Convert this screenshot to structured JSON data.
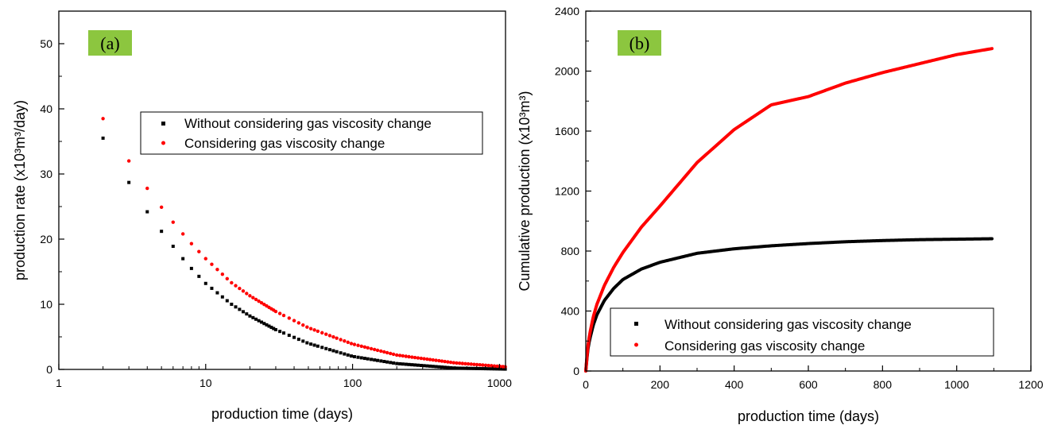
{
  "chart_data": [
    {
      "type": "scatter",
      "panel_label": "(a)",
      "xlabel": "production time (days)",
      "ylabel": "production rate (x10³m³/day)",
      "xscale": "log",
      "xlim": [
        1,
        1100
      ],
      "ylim": [
        0,
        55
      ],
      "xticks": [
        1,
        10,
        100,
        1000
      ],
      "yticks": [
        0,
        10,
        20,
        30,
        40,
        50
      ],
      "grid": false,
      "legend_position": "top-right",
      "series": [
        {
          "name": "Without considering gas viscosity change",
          "color": "#000000",
          "marker": "square",
          "x": [
            2,
            3,
            4,
            5,
            6,
            7,
            8,
            10,
            15,
            20,
            30,
            50,
            100,
            200,
            500,
            1095
          ],
          "y": [
            35.5,
            28.7,
            24.2,
            21.2,
            18.9,
            17.0,
            15.5,
            13.2,
            10.0,
            8.2,
            6.1,
            4.0,
            2.0,
            0.9,
            0.2,
            0.05
          ]
        },
        {
          "name": "Considering gas viscosity change",
          "color": "#ff0000",
          "marker": "circle",
          "x": [
            2,
            3,
            4,
            5,
            6,
            7,
            8,
            10,
            15,
            20,
            30,
            50,
            100,
            200,
            500,
            1095
          ],
          "y": [
            38.5,
            32.0,
            27.8,
            24.9,
            22.6,
            20.8,
            19.3,
            17.0,
            13.3,
            11.3,
            8.9,
            6.4,
            3.9,
            2.2,
            1.0,
            0.4
          ]
        }
      ]
    },
    {
      "type": "line",
      "panel_label": "(b)",
      "xlabel": "production time (days)",
      "ylabel": "Cumulative production (x10³m³)",
      "xlim": [
        0,
        1200
      ],
      "ylim": [
        0,
        2400
      ],
      "xticks": [
        0,
        200,
        400,
        600,
        800,
        1000,
        1200
      ],
      "yticks": [
        0,
        400,
        800,
        1200,
        1600,
        2000,
        2400
      ],
      "grid": false,
      "legend_position": "bottom-right",
      "series": [
        {
          "name": "Without considering gas viscosity change",
          "color": "#000000",
          "x": [
            0,
            5,
            10,
            20,
            30,
            50,
            75,
            100,
            150,
            200,
            300,
            400,
            500,
            600,
            700,
            800,
            900,
            1000,
            1095
          ],
          "y": [
            0,
            135,
            205,
            305,
            375,
            470,
            550,
            610,
            680,
            725,
            785,
            815,
            835,
            850,
            862,
            870,
            876,
            879,
            882
          ]
        },
        {
          "name": "Considering gas viscosity change",
          "color": "#ff0000",
          "x": [
            0,
            5,
            10,
            20,
            30,
            50,
            75,
            100,
            150,
            200,
            300,
            400,
            500,
            600,
            700,
            800,
            900,
            1000,
            1095
          ],
          "y": [
            0,
            150,
            240,
            360,
            445,
            570,
            690,
            790,
            960,
            1100,
            1390,
            1610,
            1775,
            1830,
            1920,
            1990,
            2050,
            2110,
            2150
          ]
        }
      ]
    }
  ]
}
